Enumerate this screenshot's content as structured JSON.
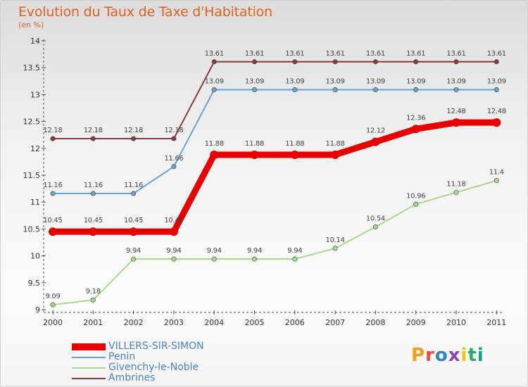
{
  "header": {
    "title": "Evolution du Taux de Taxe d'Habitation",
    "subtitle": "(en %)"
  },
  "logo": {
    "text": "Proxiti",
    "letters": [
      {
        "ch": "P",
        "color": "#f39c1b"
      },
      {
        "ch": "r",
        "color": "#e74c3c"
      },
      {
        "ch": "o",
        "color": "#2e86c1"
      },
      {
        "ch": "x",
        "color": "#8e44ad"
      },
      {
        "ch": "i",
        "color": "#f1c40f"
      },
      {
        "ch": "t",
        "color": "#27ae60"
      },
      {
        "ch": "i",
        "color": "#16a085"
      }
    ]
  },
  "chart_data": {
    "type": "line",
    "title": "Evolution du Taux de Taxe d'Habitation",
    "subtitle": "(en %)",
    "xlabel": "",
    "ylabel": "",
    "x": [
      "2000",
      "2001",
      "2002",
      "2003",
      "2004",
      "2005",
      "2006",
      "2007",
      "2008",
      "2009",
      "2010",
      "2011"
    ],
    "ylim": [
      9,
      14
    ],
    "yticks": [
      "9",
      "9.5",
      "10",
      "10.5",
      "11",
      "11.5",
      "12",
      "12.5",
      "13",
      "13.5",
      "14"
    ],
    "grid": false,
    "legend_position": "bottom-left",
    "series": [
      {
        "name": "VILLERS-SIR-SIMON",
        "color": "#e60000",
        "width": "thick",
        "values": [
          10.45,
          10.45,
          10.45,
          10.45,
          11.88,
          11.88,
          11.88,
          11.88,
          12.12,
          12.36,
          12.48,
          12.48
        ],
        "labels": [
          "10.45",
          "10.45",
          "10.45",
          "10.45",
          "11.88",
          "11.88",
          "11.88",
          "11.88",
          "12.12",
          "12.36",
          "12.48",
          "12.48"
        ]
      },
      {
        "name": "Penin",
        "color": "#6aa2d2",
        "width": "thin",
        "values": [
          11.16,
          11.16,
          11.16,
          11.66,
          13.09,
          13.09,
          13.09,
          13.09,
          13.09,
          13.09,
          13.09,
          13.09
        ],
        "labels": [
          "11.16",
          "11.16",
          "11.16",
          "11.66",
          "13.09",
          "13.09",
          "13.09",
          "13.09",
          "13.09",
          "13.09",
          "13.09",
          "13.09"
        ]
      },
      {
        "name": "Givenchy-le-Noble",
        "color": "#a6d98a",
        "width": "thin",
        "values": [
          9.09,
          9.18,
          9.94,
          9.94,
          9.94,
          9.94,
          9.94,
          10.14,
          10.54,
          10.96,
          11.18,
          11.4
        ],
        "labels": [
          "9.09",
          "9.18",
          "9.94",
          "9.94",
          "9.94",
          "9.94",
          "9.94",
          "10.14",
          "10.54",
          "10.96",
          "11.18",
          "11.4"
        ]
      },
      {
        "name": "Ambrines",
        "color": "#8b3a3a",
        "width": "thin",
        "values": [
          12.18,
          12.18,
          12.18,
          12.18,
          13.61,
          13.61,
          13.61,
          13.61,
          13.61,
          13.61,
          13.61,
          13.61
        ],
        "labels": [
          "12.18",
          "12.18",
          "12.18",
          "12.18",
          "13.61",
          "13.61",
          "13.61",
          "13.61",
          "13.61",
          "13.61",
          "13.61",
          "13.61"
        ]
      }
    ]
  }
}
